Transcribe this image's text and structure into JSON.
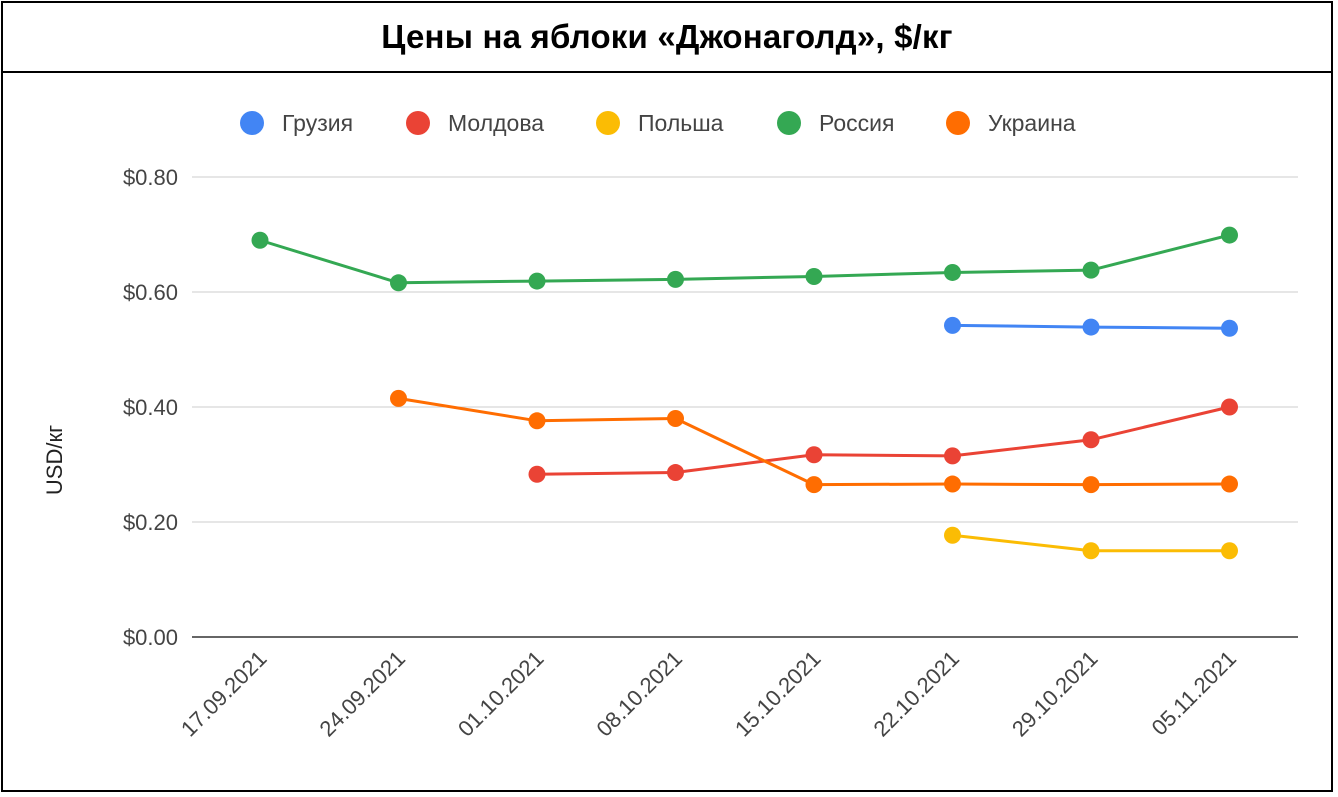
{
  "chart_data": {
    "type": "line",
    "title": "Цены на яблоки «Джонаголд», $/кг",
    "xlabel": "",
    "ylabel": "USD/кг",
    "ylim": [
      0,
      0.8
    ],
    "yticks": [
      "$0.00",
      "$0.20",
      "$0.40",
      "$0.60",
      "$0.80"
    ],
    "ytick_values": [
      0,
      0.2,
      0.4,
      0.6,
      0.8
    ],
    "grid": true,
    "legend_position": "top",
    "categories": [
      "17.09.2021",
      "24.09.2021",
      "01.10.2021",
      "08.10.2021",
      "15.10.2021",
      "22.10.2021",
      "29.10.2021",
      "05.11.2021"
    ],
    "series": [
      {
        "name": "Грузия",
        "color": "#4285F4",
        "values": [
          null,
          null,
          null,
          null,
          null,
          0.542,
          0.539,
          0.537
        ]
      },
      {
        "name": "Молдова",
        "color": "#EA4335",
        "values": [
          null,
          null,
          0.283,
          0.286,
          0.317,
          0.315,
          0.343,
          0.4
        ]
      },
      {
        "name": "Польша",
        "color": "#FBBC04",
        "values": [
          null,
          null,
          null,
          null,
          null,
          0.177,
          0.15,
          0.15
        ]
      },
      {
        "name": "Россия",
        "color": "#34A853",
        "values": [
          0.69,
          0.616,
          0.619,
          0.622,
          0.627,
          0.634,
          0.638,
          0.699
        ]
      },
      {
        "name": "Украина",
        "color": "#FF6D01",
        "values": [
          null,
          0.415,
          0.376,
          0.38,
          0.265,
          0.266,
          0.265,
          0.266
        ]
      }
    ]
  }
}
